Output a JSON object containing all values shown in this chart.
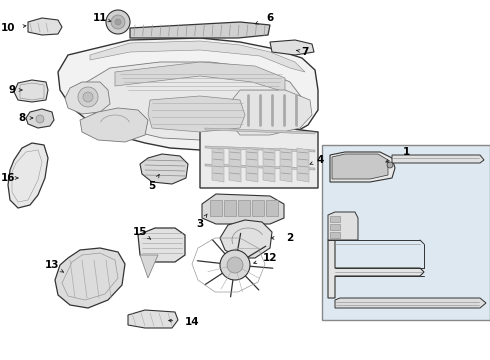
{
  "bg_color": "#ffffff",
  "line_color": "#333333",
  "box_bg": "#dde8f0",
  "label_color": "#000000",
  "part_fill": "#f0f0f0",
  "part_fill2": "#e0e0e0",
  "dark_fill": "#c0c0c0",
  "figsize": [
    4.9,
    3.6
  ],
  "dpi": 100
}
